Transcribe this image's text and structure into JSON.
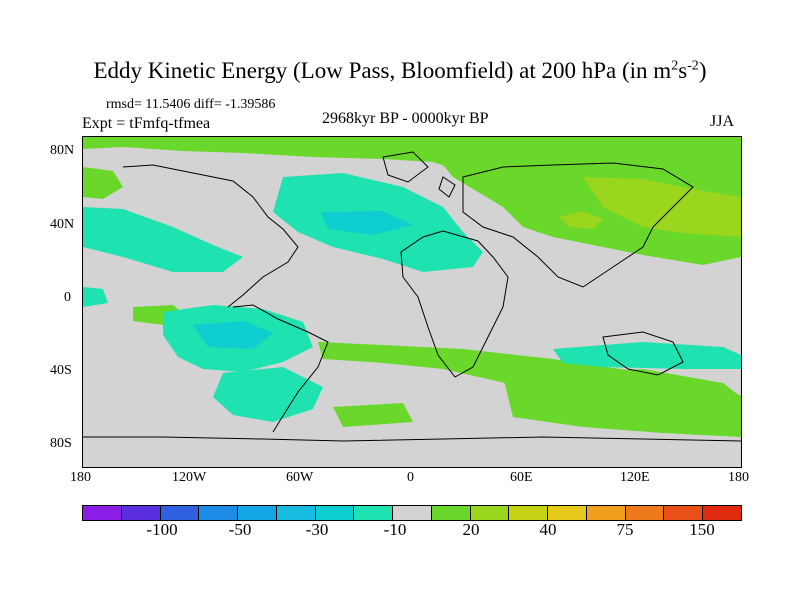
{
  "title": {
    "main": "Eddy Kinetic Energy (Low Pass, Bloomfield) at 200 hPa (in m",
    "sup1": "2",
    "mid": "s",
    "sup2": "-2",
    "close": ")"
  },
  "stats": "rmsd= 11.5406 diff= -1.39586",
  "expt": "Expt = tFmfq-tfmea",
  "period": "2968kyr BP - 0000kyr BP",
  "season": "JJA",
  "yticks": [
    "80N",
    "40N",
    "0",
    "40S",
    "80S"
  ],
  "xticks": [
    "180",
    "120W",
    "60W",
    "0",
    "60E",
    "120E",
    "180"
  ],
  "colorbar": {
    "colors": [
      "#8a1ee6",
      "#5a2fe0",
      "#2f60e0",
      "#1c8ce6",
      "#15a6e6",
      "#17bde0",
      "#0ecfd0",
      "#1ee2b0",
      "#d3d3d3",
      "#6ad82a",
      "#9bd61e",
      "#c4d415",
      "#e6c81a",
      "#f0a01e",
      "#ef7a1c",
      "#e85018",
      "#e02a10"
    ],
    "labels": [
      "-100",
      "-50",
      "-30",
      "-10",
      "20",
      "40",
      "75",
      "150"
    ]
  }
}
